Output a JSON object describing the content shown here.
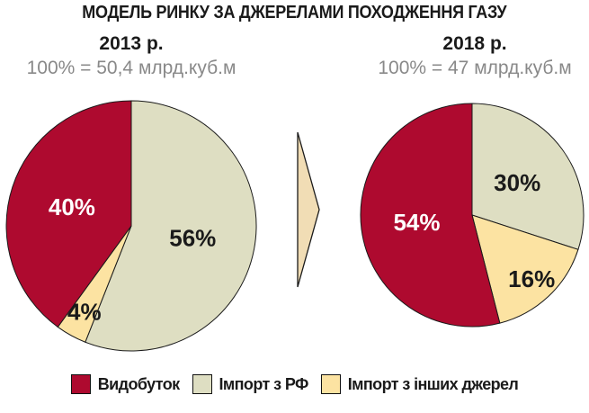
{
  "chart_data": {
    "type": "pie",
    "title": "МОДЕЛЬ РИНКУ ЗА ДЖЕРЕЛАМИ ПОХОДЖЕННЯ ГАЗУ",
    "unit": "млрд.куб.м",
    "start_angle": 0,
    "direction": "clockwise",
    "legend_position": "bottom",
    "charts": [
      {
        "subtitle": "2013 р.",
        "total_label": "100% = 50,4 млрд.куб.м",
        "total_value": 50.4,
        "slices": [
          {
            "key": "import-rf",
            "name": "Імпорт з РФ",
            "value": 56,
            "pct_label": "56%",
            "color": "#DEDEC2",
            "text_color": "#1a1a1a"
          },
          {
            "key": "import-other",
            "name": "Імпорт з інших джерел",
            "value": 4,
            "pct_label": "4%",
            "color": "#FCE3A2",
            "text_color": "#1a1a1a"
          },
          {
            "key": "vydobutok",
            "name": "Видобуток",
            "value": 40,
            "pct_label": "40%",
            "color": "#AE0A2F",
            "text_color": "#ffffff"
          }
        ]
      },
      {
        "subtitle": "2018 р.",
        "total_label": "100% = 47 млрд.куб.м",
        "total_value": 47,
        "slices": [
          {
            "key": "import-rf",
            "name": "Імпорт з РФ",
            "value": 30,
            "pct_label": "30%",
            "color": "#DEDEC2",
            "text_color": "#1a1a1a"
          },
          {
            "key": "import-other",
            "name": "Імпорт з інших джерел",
            "value": 16,
            "pct_label": "16%",
            "color": "#FCE3A2",
            "text_color": "#1a1a1a"
          },
          {
            "key": "vydobutok",
            "name": "Видобуток",
            "value": 54,
            "pct_label": "54%",
            "color": "#AE0A2F",
            "text_color": "#ffffff"
          }
        ]
      }
    ],
    "legend": [
      {
        "key": "vydobutok",
        "label": "Видобуток",
        "color": "#AE0A2F"
      },
      {
        "key": "import-rf",
        "label": "Імпорт з РФ",
        "color": "#DEDEC2"
      },
      {
        "key": "import-other",
        "label": "Імпорт з інших джерел",
        "color": "#FCE3A2"
      }
    ]
  },
  "colors": {
    "red": "#AE0A2F",
    "beige": "#DEDEC2",
    "yellow": "#FCE3A2",
    "arrow_fill": "#F1DDB5",
    "outline": "#1a1a1a",
    "gray_text": "#898989"
  }
}
